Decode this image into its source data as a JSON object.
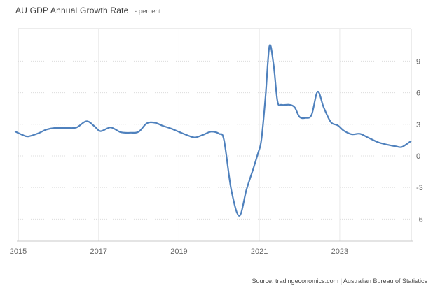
{
  "header": {
    "title": "AU GDP Annual Growth Rate",
    "subtitle": "- percent"
  },
  "footer": {
    "source": "Source: tradingeconomics.com | Australian Bureau of Statistics"
  },
  "colors": {
    "line": "#4f81bd",
    "grid_h": "#dcdcdc",
    "grid_v": "#e9e9e9",
    "plot_border": "#d9d9d9",
    "axis_line": "#c8c8c8",
    "tick_text": "#666666"
  },
  "chart_data": {
    "type": "line",
    "title": "AU GDP Annual Growth Rate",
    "unit": "percent",
    "xlabel": "",
    "ylabel": "",
    "legend": false,
    "grid": true,
    "x_ticks": [
      2015,
      2017,
      2019,
      2021,
      2023
    ],
    "y_ticks": [
      9,
      6,
      3,
      0,
      -3,
      -6
    ],
    "x_range": [
      2015,
      2024.78
    ],
    "y_range": [
      -8.1,
      12.08
    ],
    "series": [
      {
        "name": "AU GDP Annual Growth Rate (percent, quarterly)",
        "points": [
          [
            2014.93,
            2.3
          ],
          [
            2015.1,
            2.0
          ],
          [
            2015.25,
            1.85
          ],
          [
            2015.5,
            2.15
          ],
          [
            2015.7,
            2.5
          ],
          [
            2015.9,
            2.65
          ],
          [
            2016.2,
            2.65
          ],
          [
            2016.45,
            2.7
          ],
          [
            2016.7,
            3.3
          ],
          [
            2016.9,
            2.8
          ],
          [
            2017.05,
            2.35
          ],
          [
            2017.3,
            2.7
          ],
          [
            2017.55,
            2.25
          ],
          [
            2017.8,
            2.2
          ],
          [
            2018.0,
            2.3
          ],
          [
            2018.2,
            3.1
          ],
          [
            2018.4,
            3.15
          ],
          [
            2018.6,
            2.85
          ],
          [
            2018.8,
            2.6
          ],
          [
            2019.05,
            2.2
          ],
          [
            2019.25,
            1.9
          ],
          [
            2019.4,
            1.75
          ],
          [
            2019.6,
            2.0
          ],
          [
            2019.8,
            2.3
          ],
          [
            2020.0,
            2.1
          ],
          [
            2020.12,
            1.5
          ],
          [
            2020.3,
            -3.2
          ],
          [
            2020.5,
            -5.7
          ],
          [
            2020.68,
            -3.2
          ],
          [
            2020.85,
            -1.2
          ],
          [
            2020.97,
            0.3
          ],
          [
            2021.05,
            1.5
          ],
          [
            2021.15,
            5.5
          ],
          [
            2021.25,
            10.4
          ],
          [
            2021.35,
            8.8
          ],
          [
            2021.45,
            5.2
          ],
          [
            2021.55,
            4.85
          ],
          [
            2021.75,
            4.85
          ],
          [
            2021.88,
            4.6
          ],
          [
            2022.0,
            3.7
          ],
          [
            2022.15,
            3.6
          ],
          [
            2022.3,
            3.9
          ],
          [
            2022.45,
            6.1
          ],
          [
            2022.6,
            4.6
          ],
          [
            2022.78,
            3.2
          ],
          [
            2022.95,
            2.9
          ],
          [
            2023.1,
            2.4
          ],
          [
            2023.3,
            2.05
          ],
          [
            2023.5,
            2.1
          ],
          [
            2023.7,
            1.75
          ],
          [
            2023.95,
            1.3
          ],
          [
            2024.2,
            1.05
          ],
          [
            2024.4,
            0.9
          ],
          [
            2024.55,
            0.85
          ],
          [
            2024.77,
            1.4
          ]
        ]
      }
    ]
  }
}
